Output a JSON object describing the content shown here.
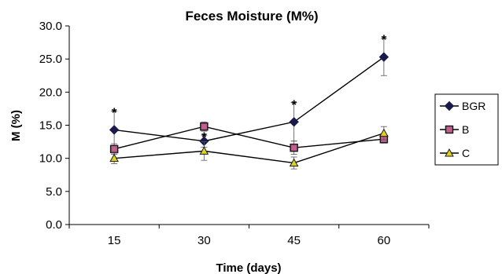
{
  "chart_data": {
    "type": "line",
    "title": "Feces Moisture (M%)",
    "xlabel": "Time (days)",
    "ylabel": "M (%)",
    "categories": [
      "15",
      "30",
      "45",
      "60"
    ],
    "ylim": [
      0,
      30
    ],
    "yticks": [
      "0.0",
      "5.0",
      "10.0",
      "15.0",
      "20.0",
      "25.0",
      "30.0"
    ],
    "grid": false,
    "legend_position": "right",
    "series": [
      {
        "name": "BGR",
        "marker": "diamond",
        "color": "#1a1a4a",
        "fill": "#1a1a4a",
        "values": [
          14.3,
          12.6,
          15.5,
          25.3
        ],
        "error": [
          2.8,
          0.9,
          2.9,
          2.8
        ]
      },
      {
        "name": "B",
        "marker": "square",
        "color": "#1a1a1a",
        "fill": "#c06090",
        "values": [
          11.4,
          14.8,
          11.6,
          12.9
        ],
        "error": [
          0.8,
          0.7,
          1.0,
          0.6
        ]
      },
      {
        "name": "C",
        "marker": "triangle",
        "color": "#1a1a1a",
        "fill": "#e0d020",
        "values": [
          10.0,
          11.1,
          9.3,
          13.8
        ],
        "error": [
          0.8,
          1.4,
          0.9,
          1.0
        ]
      }
    ],
    "annotations": [
      {
        "text": "*",
        "x": "15",
        "y": 17.2
      },
      {
        "text": "*",
        "x": "30",
        "y": 13.5
      },
      {
        "text": "*",
        "x": "45",
        "y": 18.4
      },
      {
        "text": "*",
        "x": "60",
        "y": 28.2
      }
    ]
  }
}
